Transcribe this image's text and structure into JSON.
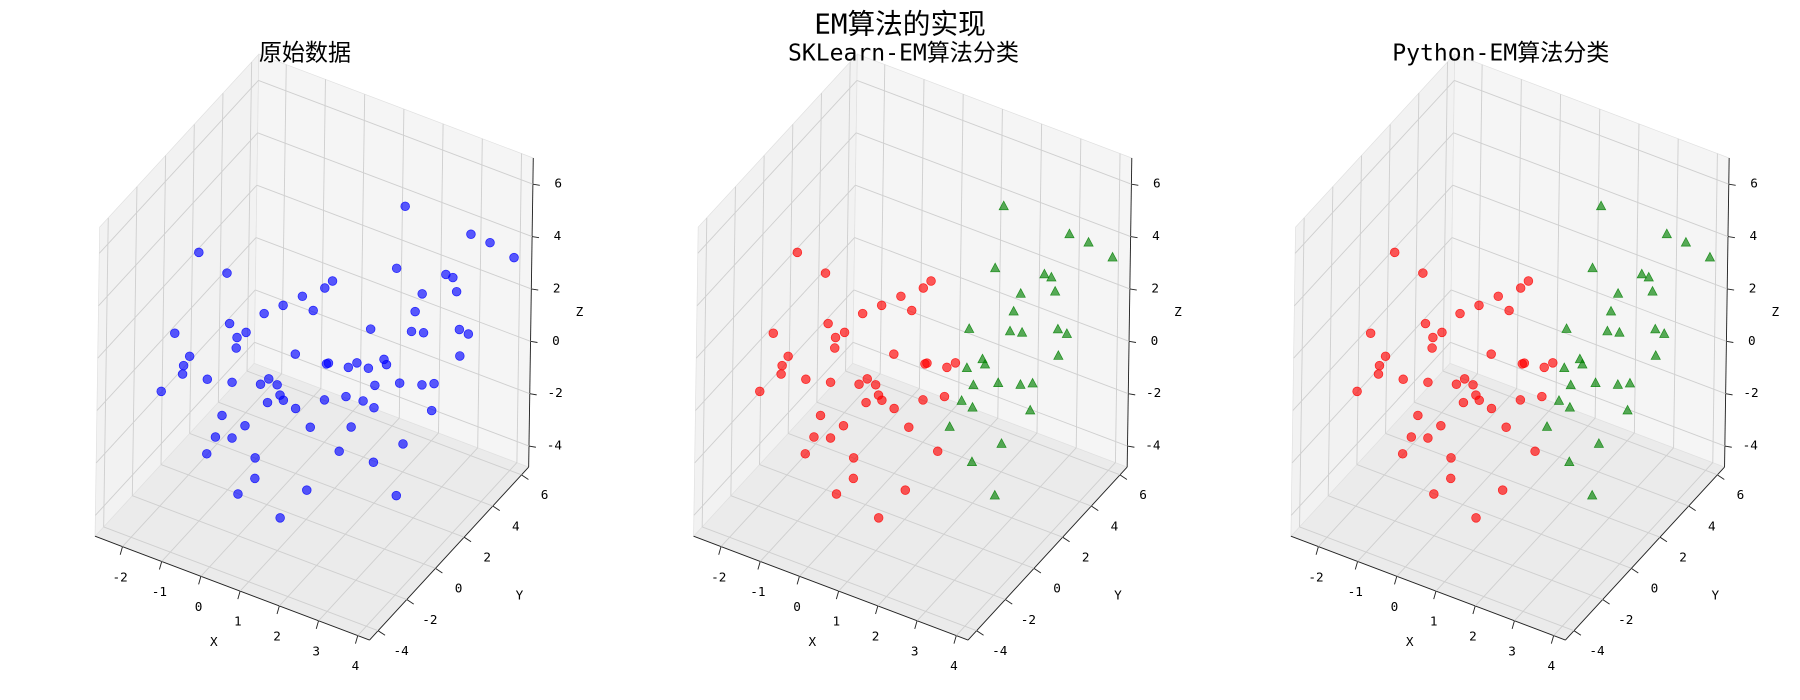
{
  "title": "EM算法的实现",
  "chart_data": [
    {
      "type": "scatter3d",
      "title": "原始数据",
      "xlabel": "X",
      "ylabel": "Y",
      "zlabel": "Z",
      "xlim": [
        -2.7,
        4.3
      ],
      "ylim": [
        -4.6,
        6.5
      ],
      "zlim": [
        -4.8,
        7.0
      ],
      "xticks": [
        -2,
        -1,
        0,
        1,
        2,
        3,
        4
      ],
      "yticks": [
        -4,
        -2,
        0,
        2,
        4,
        6
      ],
      "zticks": [
        -4,
        -2,
        0,
        2,
        4,
        6
      ],
      "grid": true,
      "series": [
        {
          "color": "#0000ff",
          "marker": "o",
          "x": [
            -0.5,
            0.2,
            -1.3,
            0.8,
            -0.2,
            0.4,
            -1.8,
            1.1,
            -0.9,
            0.0,
            0.6,
            -1.5,
            1.4,
            -0.7,
            0.3,
            -2.2,
            1.0,
            -0.4,
            0.9,
            -1.1,
            0.1,
            -0.6,
            1.6,
            -1.9,
            0.5,
            -0.3,
            1.2,
            -1.0,
            0.7,
            -2.4,
            0.2,
            -0.8,
            1.5,
            -1.4,
            0.4,
            -0.1,
            1.8,
            -1.6,
            0.9,
            -0.5,
            2.1,
            -2.0,
            0.3,
            1.3,
            -1.2,
            2.2,
            2.8,
            1.9,
            3.3,
            2.5,
            1.6,
            3.0,
            2.1,
            3.6,
            2.4,
            1.8,
            2.9,
            3.4,
            2.0,
            2.7,
            3.1,
            1.7,
            2.6,
            3.8,
            2.3,
            3.2,
            1.5,
            2.8,
            3.5,
            2.2,
            4.0,
            3.7,
            4.1,
            2.0,
            3.0
          ],
          "y": [
            -1.2,
            0.5,
            0.8,
            -0.3,
            1.5,
            -2.0,
            -0.6,
            1.0,
            -1.8,
            0.0,
            2.2,
            1.9,
            -1.1,
            0.3,
            -0.9,
            0.1,
            0.2,
            -2.6,
            1.7,
            -0.2,
            2.8,
            1.1,
            -0.5,
            -1.4,
            0.9,
            -1.5,
            -2.4,
            2.4,
            -0.1,
            -0.9,
            -3.1,
            0.6,
            1.3,
            -2.2,
            3.3,
            -0.6,
            0.6,
            1.4,
            -1.7,
            2.0,
            -0.8,
            0.5,
            -2.9,
            2.6,
            -1.0,
            2.0,
            3.1,
            1.4,
            2.5,
            3.8,
            2.7,
            1.2,
            4.2,
            3.4,
            0.8,
            3.3,
            2.2,
            4.6,
            1.9,
            4.9,
            0.5,
            2.3,
            3.6,
            2.9,
            1.1,
            4.0,
            1.7,
            5.4,
            1.8,
            2.8,
            3.0,
            5.2,
            5.8,
            3.9,
            0.9
          ],
          "z": [
            0.3,
            -1.0,
            0.9,
            -0.5,
            1.8,
            -1.6,
            0.2,
            0.6,
            -2.3,
            0.0,
            2.5,
            -0.4,
            -2.8,
            1.2,
            -0.2,
            -0.8,
            -1.4,
            -0.9,
            0.1,
            -1.9,
            1.0,
            -1.2,
            0.4,
            1.5,
            2.9,
            1.9,
            -3.2,
            0.5,
            1.4,
            -1.3,
            -0.3,
            -2.6,
            -0.6,
            0.7,
            2.0,
            -3.5,
            1.1,
            2.3,
            0.9,
            -1.7,
            -1.1,
            3.4,
            -2.5,
            -0.2,
            -0.1,
            0.8,
            1.5,
            -0.6,
            0.2,
            2.4,
            1.2,
            -1.5,
            0.5,
            1.9,
            -2.3,
            -0.4,
            2.9,
            0.9,
            -1.1,
            2.6,
            -3.0,
            0.0,
            -0.9,
            1.3,
            0.4,
            3.3,
            -2.0,
            1.7,
            -0.3,
            3.8,
            6.0,
            4.2,
            3.5,
            5.4,
            1.0
          ]
        }
      ]
    },
    {
      "type": "scatter3d",
      "title": "SKLearn-EM算法分类",
      "xlabel": "X",
      "ylabel": "Y",
      "zlabel": "Z",
      "xlim": [
        -2.7,
        4.3
      ],
      "ylim": [
        -4.6,
        6.5
      ],
      "zlim": [
        -4.8,
        7.0
      ],
      "xticks": [
        -2,
        -1,
        0,
        1,
        2,
        3,
        4
      ],
      "yticks": [
        -4,
        -2,
        0,
        2,
        4,
        6
      ],
      "zticks": [
        -4,
        -2,
        0,
        2,
        4,
        6
      ],
      "grid": true,
      "series": [
        {
          "color": "#ff0000",
          "marker": "o",
          "x": [
            -0.5,
            0.2,
            -1.3,
            0.8,
            -0.2,
            0.4,
            -1.8,
            1.1,
            -0.9,
            0.0,
            0.6,
            -1.5,
            1.4,
            -0.7,
            0.3,
            -2.2,
            1.0,
            -0.4,
            0.9,
            -1.1,
            0.1,
            -0.6,
            1.6,
            -1.9,
            0.5,
            -0.3,
            1.2,
            -1.0,
            0.7,
            -2.4,
            0.2,
            -0.8,
            1.5,
            -1.4,
            0.4,
            -0.1,
            1.8,
            -1.6,
            0.9,
            -0.5,
            2.1,
            -2.0,
            0.3,
            1.3,
            -1.2
          ],
          "y": [
            -1.2,
            0.5,
            0.8,
            -0.3,
            1.5,
            -2.0,
            -0.6,
            1.0,
            -1.8,
            0.0,
            2.2,
            1.9,
            -1.1,
            0.3,
            -0.9,
            0.1,
            0.2,
            -2.6,
            1.7,
            -0.2,
            2.8,
            1.1,
            -0.5,
            -1.4,
            0.9,
            -1.5,
            -2.4,
            2.4,
            -0.1,
            -0.9,
            -3.1,
            0.6,
            1.3,
            -2.2,
            3.3,
            -0.6,
            0.6,
            1.4,
            -1.7,
            2.0,
            -0.8,
            0.5,
            -2.9,
            2.6,
            -1.0
          ],
          "z": [
            0.3,
            -1.0,
            0.9,
            -0.5,
            1.8,
            -1.6,
            0.2,
            0.6,
            -2.3,
            0.0,
            2.5,
            -0.4,
            -2.8,
            1.2,
            -0.2,
            -0.8,
            -1.4,
            -0.9,
            0.1,
            -1.9,
            1.0,
            -1.2,
            0.4,
            1.5,
            2.9,
            1.9,
            -3.2,
            0.5,
            1.4,
            -1.3,
            -0.3,
            -2.6,
            -0.6,
            0.7,
            2.0,
            -3.5,
            1.1,
            2.3,
            0.9,
            -1.7,
            -1.1,
            3.4,
            -2.5,
            -0.2,
            -0.1
          ]
        },
        {
          "color": "#008000",
          "marker": "^",
          "x": [
            2.2,
            2.8,
            1.9,
            3.3,
            2.5,
            1.6,
            3.0,
            2.1,
            3.6,
            2.4,
            1.8,
            2.9,
            3.4,
            2.0,
            2.7,
            3.1,
            1.7,
            2.6,
            3.8,
            2.3,
            3.2,
            1.5,
            2.8,
            3.5,
            2.2,
            4.0,
            3.7,
            4.1,
            2.0,
            3.0
          ],
          "y": [
            2.0,
            3.1,
            1.4,
            2.5,
            3.8,
            2.7,
            1.2,
            4.2,
            3.4,
            0.8,
            3.3,
            2.2,
            4.6,
            1.9,
            4.9,
            0.5,
            2.3,
            3.6,
            2.9,
            1.1,
            4.0,
            1.7,
            5.4,
            1.8,
            2.8,
            3.0,
            5.2,
            5.8,
            3.9,
            0.9
          ],
          "z": [
            0.8,
            1.5,
            -0.6,
            0.2,
            2.4,
            1.2,
            -1.5,
            0.5,
            1.9,
            -2.3,
            -0.4,
            2.9,
            0.9,
            -1.1,
            2.6,
            -3.0,
            0.0,
            -0.9,
            1.3,
            0.4,
            3.3,
            -2.0,
            1.7,
            -0.3,
            3.8,
            6.0,
            4.2,
            3.5,
            5.4,
            1.0
          ]
        }
      ]
    },
    {
      "type": "scatter3d",
      "title": "Python-EM算法分类",
      "xlabel": "X",
      "ylabel": "Y",
      "zlabel": "Z",
      "xlim": [
        -2.7,
        4.3
      ],
      "ylim": [
        -4.6,
        6.5
      ],
      "zlim": [
        -4.8,
        7.0
      ],
      "xticks": [
        -2,
        -1,
        0,
        1,
        2,
        3,
        4
      ],
      "yticks": [
        -4,
        -2,
        0,
        2,
        4,
        6
      ],
      "zticks": [
        -4,
        -2,
        0,
        2,
        4,
        6
      ],
      "grid": true,
      "series": [
        {
          "color": "#ff0000",
          "marker": "o",
          "x": [
            -0.5,
            0.2,
            -1.3,
            0.8,
            -0.2,
            0.4,
            -1.8,
            1.1,
            -0.9,
            0.0,
            0.6,
            -1.5,
            1.4,
            -0.7,
            0.3,
            -2.2,
            1.0,
            -0.4,
            0.9,
            -1.1,
            0.1,
            -0.6,
            1.6,
            -1.9,
            0.5,
            -0.3,
            1.2,
            -1.0,
            0.7,
            -2.4,
            0.2,
            -0.8,
            1.5,
            -1.4,
            0.4,
            -0.1,
            1.8,
            -1.6,
            0.9,
            -0.5,
            2.1,
            -2.0,
            0.3,
            1.3,
            -1.2
          ],
          "y": [
            -1.2,
            0.5,
            0.8,
            -0.3,
            1.5,
            -2.0,
            -0.6,
            1.0,
            -1.8,
            0.0,
            2.2,
            1.9,
            -1.1,
            0.3,
            -0.9,
            0.1,
            0.2,
            -2.6,
            1.7,
            -0.2,
            2.8,
            1.1,
            -0.5,
            -1.4,
            0.9,
            -1.5,
            -2.4,
            2.4,
            -0.1,
            -0.9,
            -3.1,
            0.6,
            1.3,
            -2.2,
            3.3,
            -0.6,
            0.6,
            1.4,
            -1.7,
            2.0,
            -0.8,
            0.5,
            -2.9,
            2.6,
            -1.0
          ],
          "z": [
            0.3,
            -1.0,
            0.9,
            -0.5,
            1.8,
            -1.6,
            0.2,
            0.6,
            -2.3,
            0.0,
            2.5,
            -0.4,
            -2.8,
            1.2,
            -0.2,
            -0.8,
            -1.4,
            -0.9,
            0.1,
            -1.9,
            1.0,
            -1.2,
            0.4,
            1.5,
            2.9,
            1.9,
            -3.2,
            0.5,
            1.4,
            -1.3,
            -0.3,
            -2.6,
            -0.6,
            0.7,
            2.0,
            -3.5,
            1.1,
            2.3,
            0.9,
            -1.7,
            -1.1,
            3.4,
            -2.5,
            -0.2,
            -0.1
          ]
        },
        {
          "color": "#008000",
          "marker": "^",
          "x": [
            2.2,
            2.8,
            1.9,
            3.3,
            2.5,
            1.6,
            3.0,
            2.1,
            3.6,
            2.4,
            1.8,
            2.9,
            3.4,
            2.0,
            2.7,
            3.1,
            1.7,
            2.6,
            3.8,
            2.3,
            3.2,
            1.5,
            2.8,
            3.5,
            2.2,
            4.0,
            3.7,
            4.1,
            2.0,
            3.0
          ],
          "y": [
            2.0,
            3.1,
            1.4,
            2.5,
            3.8,
            2.7,
            1.2,
            4.2,
            3.4,
            0.8,
            3.3,
            2.2,
            4.6,
            1.9,
            4.9,
            0.5,
            2.3,
            3.6,
            2.9,
            1.1,
            4.0,
            1.7,
            5.4,
            1.8,
            2.8,
            3.0,
            5.2,
            5.8,
            3.9,
            0.9
          ],
          "z": [
            0.8,
            1.5,
            -0.6,
            0.2,
            2.4,
            1.2,
            -1.5,
            0.5,
            1.9,
            -2.3,
            -0.4,
            2.9,
            0.9,
            -1.1,
            2.6,
            -3.0,
            0.0,
            -0.9,
            1.3,
            0.4,
            3.3,
            -2.0,
            1.7,
            -0.3,
            3.8,
            6.0,
            4.2,
            3.5,
            5.4,
            1.0
          ]
        }
      ]
    }
  ]
}
